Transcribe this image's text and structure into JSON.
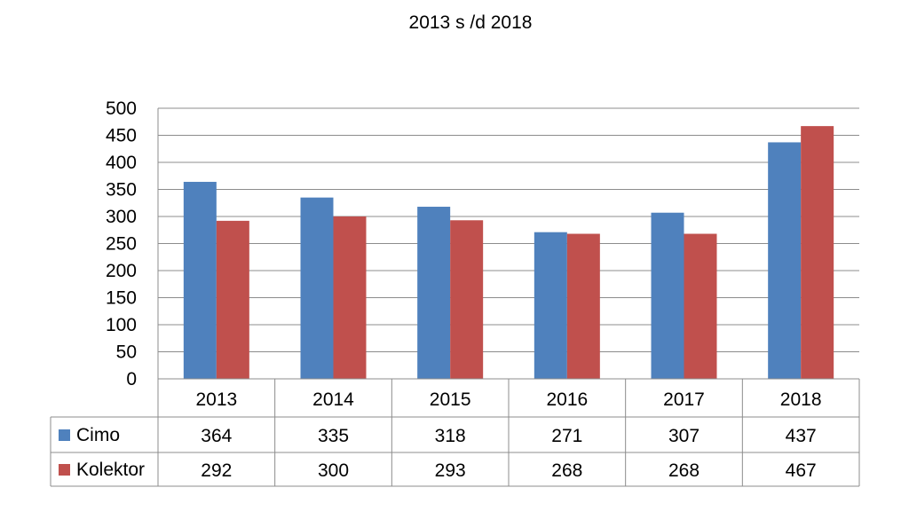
{
  "chart_data": {
    "type": "bar",
    "title": "2013 s /d 2018",
    "categories": [
      "2013",
      "2014",
      "2015",
      "2016",
      "2017",
      "2018"
    ],
    "series": [
      {
        "name": "Cimo",
        "color": "#4F81BD",
        "values": [
          364,
          335,
          318,
          271,
          307,
          437
        ]
      },
      {
        "name": "Kolektor",
        "color": "#C0504D",
        "values": [
          292,
          300,
          293,
          268,
          268,
          467
        ]
      }
    ],
    "ylim": [
      0,
      500
    ],
    "yticks": [
      0,
      50,
      100,
      150,
      200,
      250,
      300,
      350,
      400,
      450,
      500
    ],
    "grid": true,
    "legend": "data-table",
    "data_table": true
  }
}
